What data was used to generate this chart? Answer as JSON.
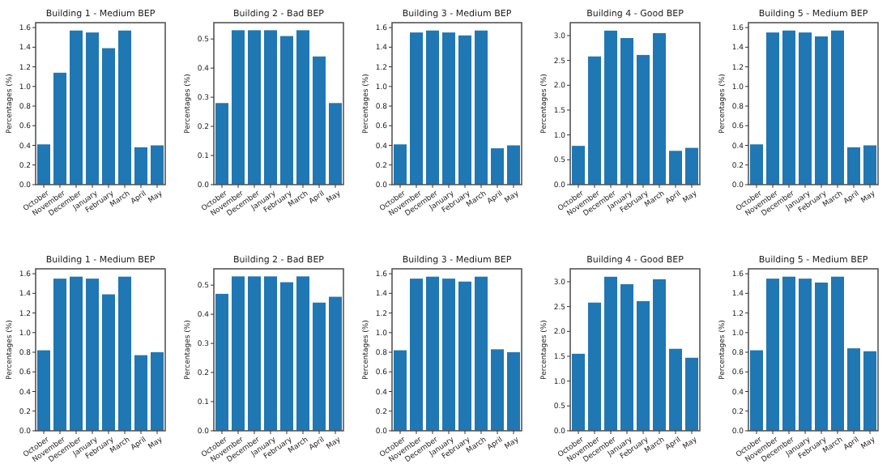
{
  "chart_data": [
    {
      "type": "bar",
      "title": "Building 1 - Medium BEP",
      "ylabel": "Percentages (%)",
      "categories": [
        "October",
        "November",
        "December",
        "January",
        "February",
        "March",
        "April",
        "May"
      ],
      "values": [
        0.41,
        1.14,
        1.57,
        1.55,
        1.39,
        1.57,
        0.38,
        0.4
      ],
      "color": "#1f77b4",
      "ylim": [
        0,
        1.65
      ],
      "yticks": [
        {
          "value": 0,
          "label": "0.0"
        },
        {
          "value": 0.2,
          "label": "0.2"
        },
        {
          "value": 0.4,
          "label": "0.4"
        },
        {
          "value": 0.6,
          "label": "0.6"
        },
        {
          "value": 0.8,
          "label": "0.8"
        },
        {
          "value": 1,
          "label": "1.0"
        },
        {
          "value": 1.2,
          "label": "1.2"
        },
        {
          "value": 1.4,
          "label": "1.4"
        },
        {
          "value": 1.6,
          "label": "1.6"
        }
      ]
    },
    {
      "type": "bar",
      "title": "Building 2 - Bad BEP",
      "ylabel": "Percentages (%)",
      "categories": [
        "October",
        "November",
        "December",
        "January",
        "February",
        "March",
        "April",
        "May"
      ],
      "values": [
        0.28,
        0.53,
        0.53,
        0.53,
        0.51,
        0.53,
        0.44,
        0.28
      ],
      "color": "#1f77b4",
      "ylim": [
        0,
        0.556
      ],
      "yticks": [
        {
          "value": 0,
          "label": "0.0"
        },
        {
          "value": 0.1,
          "label": "0.1"
        },
        {
          "value": 0.2,
          "label": "0.2"
        },
        {
          "value": 0.3,
          "label": "0.3"
        },
        {
          "value": 0.4,
          "label": "0.4"
        },
        {
          "value": 0.5,
          "label": "0.5"
        }
      ]
    },
    {
      "type": "bar",
      "title": "Building 3 - Medium BEP",
      "ylabel": "Percentages (%)",
      "categories": [
        "October",
        "November",
        "December",
        "January",
        "February",
        "March",
        "April",
        "May"
      ],
      "values": [
        0.41,
        1.55,
        1.57,
        1.55,
        1.52,
        1.57,
        0.37,
        0.4
      ],
      "color": "#1f77b4",
      "ylim": [
        0,
        1.65
      ],
      "yticks": [
        {
          "value": 0,
          "label": "0.0"
        },
        {
          "value": 0.2,
          "label": "0.2"
        },
        {
          "value": 0.4,
          "label": "0.4"
        },
        {
          "value": 0.6,
          "label": "0.6"
        },
        {
          "value": 0.8,
          "label": "0.8"
        },
        {
          "value": 1,
          "label": "1.0"
        },
        {
          "value": 1.2,
          "label": "1.2"
        },
        {
          "value": 1.4,
          "label": "1.4"
        },
        {
          "value": 1.6,
          "label": "1.6"
        }
      ]
    },
    {
      "type": "bar",
      "title": "Building 4 - Good BEP",
      "ylabel": "Percentages (%)",
      "categories": [
        "October",
        "November",
        "December",
        "January",
        "February",
        "March",
        "April",
        "May"
      ],
      "values": [
        0.78,
        2.58,
        3.1,
        2.95,
        2.61,
        3.05,
        0.68,
        0.74
      ],
      "color": "#1f77b4",
      "ylim": [
        0,
        3.26
      ],
      "yticks": [
        {
          "value": 0,
          "label": "0.0"
        },
        {
          "value": 0.5,
          "label": "0.5"
        },
        {
          "value": 1,
          "label": "1.0"
        },
        {
          "value": 1.5,
          "label": "1.5"
        },
        {
          "value": 2,
          "label": "2.0"
        },
        {
          "value": 2.5,
          "label": "2.5"
        },
        {
          "value": 3,
          "label": "3.0"
        }
      ]
    },
    {
      "type": "bar",
      "title": "Building 5 - Medium BEP",
      "ylabel": "Percentages (%)",
      "categories": [
        "October",
        "November",
        "December",
        "January",
        "February",
        "March",
        "April",
        "May"
      ],
      "values": [
        0.41,
        1.55,
        1.57,
        1.55,
        1.51,
        1.57,
        0.38,
        0.4
      ],
      "color": "#1f77b4",
      "ylim": [
        0,
        1.65
      ],
      "yticks": [
        {
          "value": 0,
          "label": "0.0"
        },
        {
          "value": 0.2,
          "label": "0.2"
        },
        {
          "value": 0.4,
          "label": "0.4"
        },
        {
          "value": 0.6,
          "label": "0.6"
        },
        {
          "value": 0.8,
          "label": "0.8"
        },
        {
          "value": 1,
          "label": "1.0"
        },
        {
          "value": 1.2,
          "label": "1.2"
        },
        {
          "value": 1.4,
          "label": "1.4"
        },
        {
          "value": 1.6,
          "label": "1.6"
        }
      ]
    },
    {
      "type": "bar",
      "title": "Building 1 - Medium BEP",
      "ylabel": "Percentages (%)",
      "categories": [
        "October",
        "November",
        "December",
        "January",
        "February",
        "March",
        "April",
        "May"
      ],
      "values": [
        0.82,
        1.55,
        1.57,
        1.55,
        1.39,
        1.57,
        0.77,
        0.8
      ],
      "color": "#1f77b4",
      "ylim": [
        0,
        1.65
      ],
      "yticks": [
        {
          "value": 0,
          "label": "0.0"
        },
        {
          "value": 0.2,
          "label": "0.2"
        },
        {
          "value": 0.4,
          "label": "0.4"
        },
        {
          "value": 0.6,
          "label": "0.6"
        },
        {
          "value": 0.8,
          "label": "0.8"
        },
        {
          "value": 1,
          "label": "1.0"
        },
        {
          "value": 1.2,
          "label": "1.2"
        },
        {
          "value": 1.4,
          "label": "1.4"
        },
        {
          "value": 1.6,
          "label": "1.6"
        }
      ]
    },
    {
      "type": "bar",
      "title": "Building 2 - Bad BEP",
      "ylabel": "Percentages (%)",
      "categories": [
        "October",
        "November",
        "December",
        "January",
        "February",
        "March",
        "April",
        "May"
      ],
      "values": [
        0.47,
        0.53,
        0.53,
        0.53,
        0.51,
        0.53,
        0.44,
        0.46
      ],
      "color": "#1f77b4",
      "ylim": [
        0,
        0.556
      ],
      "yticks": [
        {
          "value": 0,
          "label": "0.0"
        },
        {
          "value": 0.1,
          "label": "0.1"
        },
        {
          "value": 0.2,
          "label": "0.2"
        },
        {
          "value": 0.3,
          "label": "0.3"
        },
        {
          "value": 0.4,
          "label": "0.4"
        },
        {
          "value": 0.5,
          "label": "0.5"
        }
      ]
    },
    {
      "type": "bar",
      "title": "Building 3 - Medium BEP",
      "ylabel": "Percentages (%)",
      "categories": [
        "October",
        "November",
        "December",
        "January",
        "February",
        "March",
        "April",
        "May"
      ],
      "values": [
        0.82,
        1.55,
        1.57,
        1.55,
        1.52,
        1.57,
        0.83,
        0.8
      ],
      "color": "#1f77b4",
      "ylim": [
        0,
        1.65
      ],
      "yticks": [
        {
          "value": 0,
          "label": "0.0"
        },
        {
          "value": 0.2,
          "label": "0.2"
        },
        {
          "value": 0.4,
          "label": "0.4"
        },
        {
          "value": 0.6,
          "label": "0.6"
        },
        {
          "value": 0.8,
          "label": "0.8"
        },
        {
          "value": 1,
          "label": "1.0"
        },
        {
          "value": 1.2,
          "label": "1.2"
        },
        {
          "value": 1.4,
          "label": "1.4"
        },
        {
          "value": 1.6,
          "label": "1.6"
        }
      ]
    },
    {
      "type": "bar",
      "title": "Building 4 - Good BEP",
      "ylabel": "Percentages (%)",
      "categories": [
        "October",
        "November",
        "December",
        "January",
        "February",
        "March",
        "April",
        "May"
      ],
      "values": [
        1.55,
        2.58,
        3.1,
        2.95,
        2.61,
        3.05,
        1.65,
        1.47
      ],
      "color": "#1f77b4",
      "ylim": [
        0,
        3.26
      ],
      "yticks": [
        {
          "value": 0,
          "label": "0.0"
        },
        {
          "value": 0.5,
          "label": "0.5"
        },
        {
          "value": 1,
          "label": "1.0"
        },
        {
          "value": 1.5,
          "label": "1.5"
        },
        {
          "value": 2,
          "label": "2.0"
        },
        {
          "value": 2.5,
          "label": "2.5"
        },
        {
          "value": 3,
          "label": "3.0"
        }
      ]
    },
    {
      "type": "bar",
      "title": "Building 5 - Medium BEP",
      "ylabel": "Percentages (%)",
      "categories": [
        "October",
        "November",
        "December",
        "January",
        "February",
        "March",
        "April",
        "May"
      ],
      "values": [
        0.82,
        1.55,
        1.57,
        1.55,
        1.51,
        1.57,
        0.84,
        0.81
      ],
      "color": "#1f77b4",
      "ylim": [
        0,
        1.65
      ],
      "yticks": [
        {
          "value": 0,
          "label": "0.0"
        },
        {
          "value": 0.2,
          "label": "0.2"
        },
        {
          "value": 0.4,
          "label": "0.4"
        },
        {
          "value": 0.6,
          "label": "0.6"
        },
        {
          "value": 0.8,
          "label": "0.8"
        },
        {
          "value": 1,
          "label": "1.0"
        },
        {
          "value": 1.2,
          "label": "1.2"
        },
        {
          "value": 1.4,
          "label": "1.4"
        },
        {
          "value": 1.6,
          "label": "1.6"
        }
      ]
    }
  ]
}
